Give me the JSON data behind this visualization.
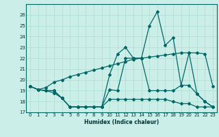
{
  "xlabel": "Humidex (Indice chaleur)",
  "x": [
    0,
    1,
    2,
    3,
    4,
    5,
    6,
    7,
    8,
    9,
    10,
    11,
    12,
    13,
    14,
    15,
    16,
    17,
    18,
    19,
    20,
    21,
    22,
    23
  ],
  "line_max": [
    19.4,
    19.1,
    19.0,
    19.0,
    18.3,
    17.5,
    17.5,
    17.5,
    17.5,
    17.5,
    20.5,
    22.4,
    23.0,
    22.0,
    22.0,
    25.0,
    26.3,
    23.2,
    23.9,
    19.5,
    22.5,
    18.7,
    18.0,
    17.5
  ],
  "line_mid": [
    19.4,
    19.1,
    19.0,
    19.0,
    18.3,
    17.5,
    17.5,
    17.5,
    17.5,
    17.5,
    19.1,
    19.0,
    22.0,
    22.0,
    22.0,
    19.0,
    19.0,
    19.0,
    19.0,
    19.5,
    19.5,
    18.7,
    18.0,
    17.5
  ],
  "line_min": [
    19.4,
    19.1,
    19.0,
    18.8,
    18.3,
    17.5,
    17.5,
    17.5,
    17.5,
    17.5,
    18.2,
    18.2,
    18.2,
    18.2,
    18.2,
    18.2,
    18.2,
    18.2,
    18.0,
    17.8,
    17.8,
    17.5,
    17.5,
    17.5
  ],
  "line_trend": [
    19.4,
    19.1,
    19.3,
    19.8,
    20.0,
    20.3,
    20.5,
    20.7,
    20.9,
    21.1,
    21.3,
    21.5,
    21.7,
    21.9,
    22.0,
    22.1,
    22.2,
    22.3,
    22.4,
    22.5,
    22.5,
    22.5,
    22.4,
    19.4
  ],
  "ylim": [
    17,
    27
  ],
  "xlim": [
    -0.5,
    23.5
  ],
  "yticks": [
    17,
    18,
    19,
    20,
    21,
    22,
    23,
    24,
    25,
    26
  ],
  "xticks": [
    0,
    1,
    2,
    3,
    4,
    5,
    6,
    7,
    8,
    9,
    10,
    11,
    12,
    13,
    14,
    15,
    16,
    17,
    18,
    19,
    20,
    21,
    22,
    23
  ],
  "line_color": "#006666",
  "bg_color": "#cceee8",
  "grid_color": "#aaddcc"
}
